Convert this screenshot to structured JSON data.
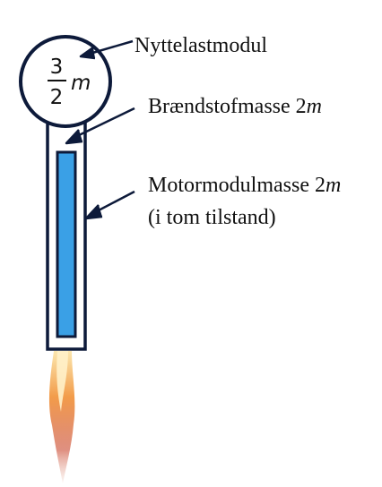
{
  "payload": {
    "fraction_numerator": "3",
    "fraction_denominator": "2",
    "mass_symbol": "m"
  },
  "labels": {
    "payload_module": "Nyttelastmodul",
    "fuel_mass": "Brændstofmasse 2",
    "fuel_mass_symbol": "m",
    "motor_mass": "Motormodulmasse 2",
    "motor_mass_symbol": "m",
    "motor_mass_note": "(i tom tilstand)"
  },
  "colors": {
    "outline": "#0d1a3a",
    "fuel": "#3aa0e6",
    "flame_core": "#fbe3a0",
    "flame_mid": "#f08a2a",
    "flame_outer": "#c9442b"
  }
}
